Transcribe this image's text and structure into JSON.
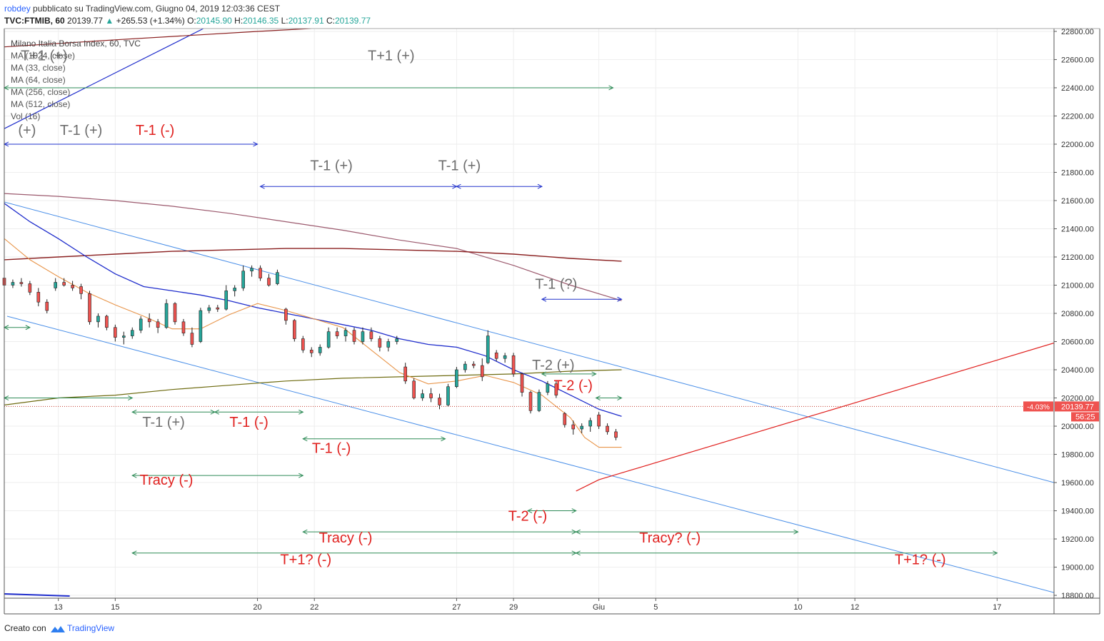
{
  "header": {
    "user": "robdey",
    "published": "pubblicato su TradingView.com, Giugno 04, 2019 12:03:36 CEST",
    "symbol": "TVC:FTMIB, 60",
    "last": "20139.77",
    "change_arrow": "▲",
    "change": "+265.53 (+1.34%)",
    "open_label": "O:",
    "open": "20145.90",
    "high_label": "H:",
    "high": "20146.35",
    "low_label": "L:",
    "low": "20137.91",
    "close_label": "C:",
    "close": "20139.77"
  },
  "legend": {
    "title": "Milano Italia Borsa Index, 60, TVC",
    "items": [
      "MA (1024, close)",
      "MA (33, close)",
      "MA (64, close)",
      "MA (256, close)",
      "MA (512, close)",
      "Vol (16)"
    ]
  },
  "footer": {
    "created_with": "Creato con",
    "brand": "TradingView"
  },
  "colors": {
    "up": "#26a69a",
    "down": "#ef5350",
    "grid": "#eeeeee",
    "ma33": "#e8954a",
    "ma64": "#1f2dcc",
    "ma256": "#6e6b10",
    "ma512": "#8a1f1f",
    "ma1024": "#9c5a6e",
    "channel": "#4a8fe8",
    "green_arrow": "#2e8b57",
    "blue_arrow": "#2233cc",
    "red": "#e0201e",
    "gray_text": "#6d6d6d"
  },
  "chart_data": {
    "type": "candlestick",
    "title": "Milano Italia Borsa Index, 60, TVC",
    "y_ticks": [
      "22800.00",
      "22600.00",
      "22400.00",
      "22200.00",
      "22000.00",
      "21800.00",
      "21600.00",
      "21400.00",
      "21200.00",
      "21000.00",
      "20800.00",
      "20600.00",
      "20400.00",
      "20200.00",
      "20000.00",
      "19800.00",
      "19600.00",
      "19400.00",
      "19200.00",
      "19000.00",
      "18800.00"
    ],
    "ylim": [
      18780,
      22820
    ],
    "x_ticks": [
      "13",
      "15",
      "20",
      "22",
      "27",
      "29",
      "Giu",
      "5",
      "10",
      "12",
      "17"
    ],
    "x_tick_days": [
      13,
      15,
      20,
      22,
      27,
      29,
      32,
      34,
      39,
      41,
      46
    ],
    "xlim": [
      11.1,
      48.0
    ],
    "last_price_label": "20139.77",
    "last_price": 20139.77,
    "pct_label": "-4.03%",
    "countdown": "56:25",
    "ma33": [
      [
        11.1,
        21330
      ],
      [
        12,
        21180
      ],
      [
        13,
        21060
      ],
      [
        14,
        20950
      ],
      [
        15,
        20860
      ],
      [
        16,
        20780
      ],
      [
        17,
        20690
      ],
      [
        18,
        20690
      ],
      [
        19,
        20790
      ],
      [
        20,
        20870
      ],
      [
        21,
        20820
      ],
      [
        22,
        20760
      ],
      [
        23,
        20700
      ],
      [
        24,
        20540
      ],
      [
        25,
        20380
      ],
      [
        26,
        20300
      ],
      [
        27,
        20320
      ],
      [
        28,
        20360
      ],
      [
        29,
        20310
      ],
      [
        30,
        20220
      ],
      [
        31,
        20060
      ],
      [
        31.5,
        19920
      ],
      [
        32,
        19850
      ],
      [
        32.8,
        19850
      ]
    ],
    "ma64": [
      [
        11.1,
        21580
      ],
      [
        12,
        21450
      ],
      [
        13,
        21330
      ],
      [
        14,
        21200
      ],
      [
        15,
        21080
      ],
      [
        16,
        20990
      ],
      [
        17,
        20960
      ],
      [
        18,
        20930
      ],
      [
        19,
        20890
      ],
      [
        20,
        20840
      ],
      [
        21,
        20800
      ],
      [
        22,
        20760
      ],
      [
        23,
        20720
      ],
      [
        24,
        20680
      ],
      [
        25,
        20620
      ],
      [
        26,
        20580
      ],
      [
        27,
        20560
      ],
      [
        28,
        20500
      ],
      [
        29,
        20400
      ],
      [
        30,
        20320
      ],
      [
        31,
        20220
      ],
      [
        32,
        20120
      ],
      [
        32.8,
        20070
      ]
    ],
    "ma256": [
      [
        11.1,
        20150
      ],
      [
        13,
        20200
      ],
      [
        15,
        20220
      ],
      [
        17,
        20260
      ],
      [
        19,
        20290
      ],
      [
        21,
        20320
      ],
      [
        23,
        20340
      ],
      [
        25,
        20350
      ],
      [
        27,
        20360
      ],
      [
        29,
        20370
      ],
      [
        31,
        20390
      ],
      [
        32.8,
        20400
      ]
    ],
    "ma512": [
      [
        11.1,
        21180
      ],
      [
        13,
        21200
      ],
      [
        15,
        21220
      ],
      [
        17,
        21240
      ],
      [
        19,
        21250
      ],
      [
        21,
        21260
      ],
      [
        23,
        21260
      ],
      [
        25,
        21250
      ],
      [
        27,
        21240
      ],
      [
        29,
        21220
      ],
      [
        31,
        21190
      ],
      [
        32.8,
        21170
      ]
    ],
    "ma512_top": [
      [
        11.1,
        22690
      ],
      [
        15,
        22740
      ],
      [
        20,
        22800
      ],
      [
        22.8,
        22830
      ]
    ],
    "ma1024": [
      [
        11.1,
        21650
      ],
      [
        13,
        21630
      ],
      [
        15,
        21600
      ],
      [
        17,
        21560
      ],
      [
        19,
        21510
      ],
      [
        21,
        21450
      ],
      [
        23,
        21390
      ],
      [
        25,
        21320
      ],
      [
        27,
        21260
      ],
      [
        29,
        21140
      ],
      [
        31,
        21000
      ],
      [
        32.8,
        20890
      ]
    ],
    "upper_channel": [
      [
        11.1,
        21590
      ],
      [
        48.0,
        19600
      ]
    ],
    "lower_channel": [
      [
        11.2,
        20780
      ],
      [
        48.0,
        18820
      ]
    ],
    "top_blue_line": [
      [
        11.1,
        22110
      ],
      [
        18.1,
        22820
      ]
    ],
    "red_trendline": [
      [
        31.2,
        19540
      ],
      [
        32.0,
        19620
      ],
      [
        48.0,
        20590
      ]
    ],
    "candles": [
      {
        "t": 11.1,
        "o": 21050,
        "h": 21080,
        "l": 20950,
        "c": 21000
      },
      {
        "t": 11.4,
        "o": 21000,
        "h": 21040,
        "l": 20980,
        "c": 21020
      },
      {
        "t": 11.7,
        "o": 21020,
        "h": 21050,
        "l": 20990,
        "c": 21010
      },
      {
        "t": 12.0,
        "o": 21010,
        "h": 21030,
        "l": 20930,
        "c": 20950
      },
      {
        "t": 12.3,
        "o": 20950,
        "h": 20980,
        "l": 20850,
        "c": 20880
      },
      {
        "t": 12.6,
        "o": 20880,
        "h": 20900,
        "l": 20800,
        "c": 20820
      },
      {
        "t": 12.9,
        "o": 20980,
        "h": 21050,
        "l": 20960,
        "c": 21020
      },
      {
        "t": 13.2,
        "o": 21020,
        "h": 21050,
        "l": 20990,
        "c": 21000
      },
      {
        "t": 13.5,
        "o": 21000,
        "h": 21030,
        "l": 20960,
        "c": 20980
      },
      {
        "t": 13.8,
        "o": 20990,
        "h": 21010,
        "l": 20900,
        "c": 20940
      },
      {
        "t": 14.1,
        "o": 20940,
        "h": 20960,
        "l": 20720,
        "c": 20740
      },
      {
        "t": 14.4,
        "o": 20740,
        "h": 20800,
        "l": 20700,
        "c": 20780
      },
      {
        "t": 14.7,
        "o": 20780,
        "h": 20790,
        "l": 20680,
        "c": 20700
      },
      {
        "t": 15.0,
        "o": 20700,
        "h": 20720,
        "l": 20600,
        "c": 20630
      },
      {
        "t": 15.3,
        "o": 20630,
        "h": 20670,
        "l": 20580,
        "c": 20640
      },
      {
        "t": 15.6,
        "o": 20640,
        "h": 20700,
        "l": 20620,
        "c": 20680
      },
      {
        "t": 15.9,
        "o": 20680,
        "h": 20780,
        "l": 20660,
        "c": 20760
      },
      {
        "t": 16.2,
        "o": 20760,
        "h": 20800,
        "l": 20700,
        "c": 20740
      },
      {
        "t": 16.5,
        "o": 20740,
        "h": 20760,
        "l": 20660,
        "c": 20700
      },
      {
        "t": 16.8,
        "o": 20700,
        "h": 20900,
        "l": 20690,
        "c": 20870
      },
      {
        "t": 17.1,
        "o": 20870,
        "h": 20880,
        "l": 20720,
        "c": 20740
      },
      {
        "t": 17.4,
        "o": 20740,
        "h": 20760,
        "l": 20640,
        "c": 20660
      },
      {
        "t": 17.7,
        "o": 20660,
        "h": 20700,
        "l": 20560,
        "c": 20580
      },
      {
        "t": 18.0,
        "o": 20600,
        "h": 20840,
        "l": 20590,
        "c": 20820
      },
      {
        "t": 18.3,
        "o": 20820,
        "h": 20860,
        "l": 20800,
        "c": 20840
      },
      {
        "t": 18.6,
        "o": 20840,
        "h": 20860,
        "l": 20810,
        "c": 20830
      },
      {
        "t": 18.9,
        "o": 20830,
        "h": 21000,
        "l": 20820,
        "c": 20960
      },
      {
        "t": 19.2,
        "o": 20960,
        "h": 21000,
        "l": 20920,
        "c": 20980
      },
      {
        "t": 19.5,
        "o": 20980,
        "h": 21140,
        "l": 20960,
        "c": 21100
      },
      {
        "t": 19.8,
        "o": 21100,
        "h": 21140,
        "l": 21060,
        "c": 21120
      },
      {
        "t": 20.1,
        "o": 21120,
        "h": 21140,
        "l": 21030,
        "c": 21050
      },
      {
        "t": 20.4,
        "o": 21050,
        "h": 21080,
        "l": 20990,
        "c": 21000
      },
      {
        "t": 20.7,
        "o": 21010,
        "h": 21110,
        "l": 21000,
        "c": 21090
      },
      {
        "t": 21.0,
        "o": 20830,
        "h": 20840,
        "l": 20720,
        "c": 20750
      },
      {
        "t": 21.3,
        "o": 20750,
        "h": 20760,
        "l": 20600,
        "c": 20620
      },
      {
        "t": 21.6,
        "o": 20620,
        "h": 20640,
        "l": 20520,
        "c": 20540
      },
      {
        "t": 21.9,
        "o": 20540,
        "h": 20560,
        "l": 20490,
        "c": 20520
      },
      {
        "t": 22.2,
        "o": 20520,
        "h": 20580,
        "l": 20500,
        "c": 20560
      },
      {
        "t": 22.5,
        "o": 20560,
        "h": 20700,
        "l": 20550,
        "c": 20670
      },
      {
        "t": 22.8,
        "o": 20670,
        "h": 20700,
        "l": 20620,
        "c": 20640
      },
      {
        "t": 23.1,
        "o": 20640,
        "h": 20700,
        "l": 20600,
        "c": 20680
      },
      {
        "t": 23.4,
        "o": 20680,
        "h": 20700,
        "l": 20580,
        "c": 20600
      },
      {
        "t": 23.7,
        "o": 20600,
        "h": 20700,
        "l": 20580,
        "c": 20670
      },
      {
        "t": 24.0,
        "o": 20670,
        "h": 20700,
        "l": 20600,
        "c": 20620
      },
      {
        "t": 24.3,
        "o": 20620,
        "h": 20640,
        "l": 20530,
        "c": 20560
      },
      {
        "t": 24.6,
        "o": 20560,
        "h": 20620,
        "l": 20530,
        "c": 20600
      },
      {
        "t": 24.9,
        "o": 20600,
        "h": 20640,
        "l": 20580,
        "c": 20620
      },
      {
        "t": 25.2,
        "o": 20420,
        "h": 20450,
        "l": 20300,
        "c": 20320
      },
      {
        "t": 25.5,
        "o": 20320,
        "h": 20340,
        "l": 20190,
        "c": 20200
      },
      {
        "t": 25.8,
        "o": 20200,
        "h": 20260,
        "l": 20180,
        "c": 20230
      },
      {
        "t": 26.1,
        "o": 20230,
        "h": 20270,
        "l": 20170,
        "c": 20200
      },
      {
        "t": 26.4,
        "o": 20200,
        "h": 20230,
        "l": 20120,
        "c": 20150
      },
      {
        "t": 26.7,
        "o": 20150,
        "h": 20300,
        "l": 20140,
        "c": 20280
      },
      {
        "t": 27.0,
        "o": 20280,
        "h": 20420,
        "l": 20270,
        "c": 20400
      },
      {
        "t": 27.3,
        "o": 20400,
        "h": 20460,
        "l": 20380,
        "c": 20440
      },
      {
        "t": 27.6,
        "o": 20440,
        "h": 20460,
        "l": 20410,
        "c": 20430
      },
      {
        "t": 27.9,
        "o": 20430,
        "h": 20480,
        "l": 20320,
        "c": 20350
      },
      {
        "t": 28.1,
        "o": 20450,
        "h": 20680,
        "l": 20440,
        "c": 20640
      },
      {
        "t": 28.4,
        "o": 20520,
        "h": 20540,
        "l": 20460,
        "c": 20480
      },
      {
        "t": 28.7,
        "o": 20480,
        "h": 20520,
        "l": 20450,
        "c": 20500
      },
      {
        "t": 29.0,
        "o": 20500,
        "h": 20520,
        "l": 20350,
        "c": 20370
      },
      {
        "t": 29.3,
        "o": 20370,
        "h": 20380,
        "l": 20210,
        "c": 20240
      },
      {
        "t": 29.6,
        "o": 20240,
        "h": 20250,
        "l": 20090,
        "c": 20110
      },
      {
        "t": 29.9,
        "o": 20110,
        "h": 20260,
        "l": 20100,
        "c": 20240
      },
      {
        "t": 30.2,
        "o": 20240,
        "h": 20320,
        "l": 20220,
        "c": 20300
      },
      {
        "t": 30.5,
        "o": 20300,
        "h": 20320,
        "l": 20200,
        "c": 20220
      },
      {
        "t": 30.8,
        "o": 20090,
        "h": 20100,
        "l": 19990,
        "c": 20010
      },
      {
        "t": 31.1,
        "o": 20010,
        "h": 20040,
        "l": 19940,
        "c": 19980
      },
      {
        "t": 31.4,
        "o": 19980,
        "h": 20020,
        "l": 19950,
        "c": 20000
      },
      {
        "t": 31.7,
        "o": 20000,
        "h": 20060,
        "l": 19960,
        "c": 20040
      },
      {
        "t": 32.0,
        "o": 20080,
        "h": 20100,
        "l": 19980,
        "c": 20000
      },
      {
        "t": 32.3,
        "o": 20000,
        "h": 20020,
        "l": 19940,
        "c": 19960
      },
      {
        "t": 32.6,
        "o": 19960,
        "h": 19980,
        "l": 19900,
        "c": 19920
      }
    ],
    "annotations": [
      {
        "text": "T+1 (+)",
        "color": "gray"
      },
      {
        "text": "T+1 (+)",
        "color": "gray"
      },
      {
        "text": "(+)",
        "color": "gray"
      },
      {
        "text": "T-1 (+)",
        "color": "gray"
      },
      {
        "text": "T-1 (-)",
        "color": "red"
      },
      {
        "text": "T-1 (+)",
        "color": "gray"
      },
      {
        "text": "T-1 (+)",
        "color": "gray"
      },
      {
        "text": "T-1 (?)",
        "color": "gray"
      },
      {
        "text": "T-2 (+)",
        "color": "gray"
      },
      {
        "text": "T-2 (-)",
        "color": "red"
      },
      {
        "text": "T-1 (+)",
        "color": "gray"
      },
      {
        "text": "T-1 (-)",
        "color": "red"
      },
      {
        "text": "T-1 (-)",
        "color": "red"
      },
      {
        "text": "Tracy (-)",
        "color": "red"
      },
      {
        "text": "T-2 (-)",
        "color": "red"
      },
      {
        "text": "Tracy (-)",
        "color": "red"
      },
      {
        "text": "Tracy? (-)",
        "color": "red"
      },
      {
        "text": "T+1? (-)",
        "color": "red"
      },
      {
        "text": "T+1? (-)",
        "color": "red"
      }
    ]
  }
}
